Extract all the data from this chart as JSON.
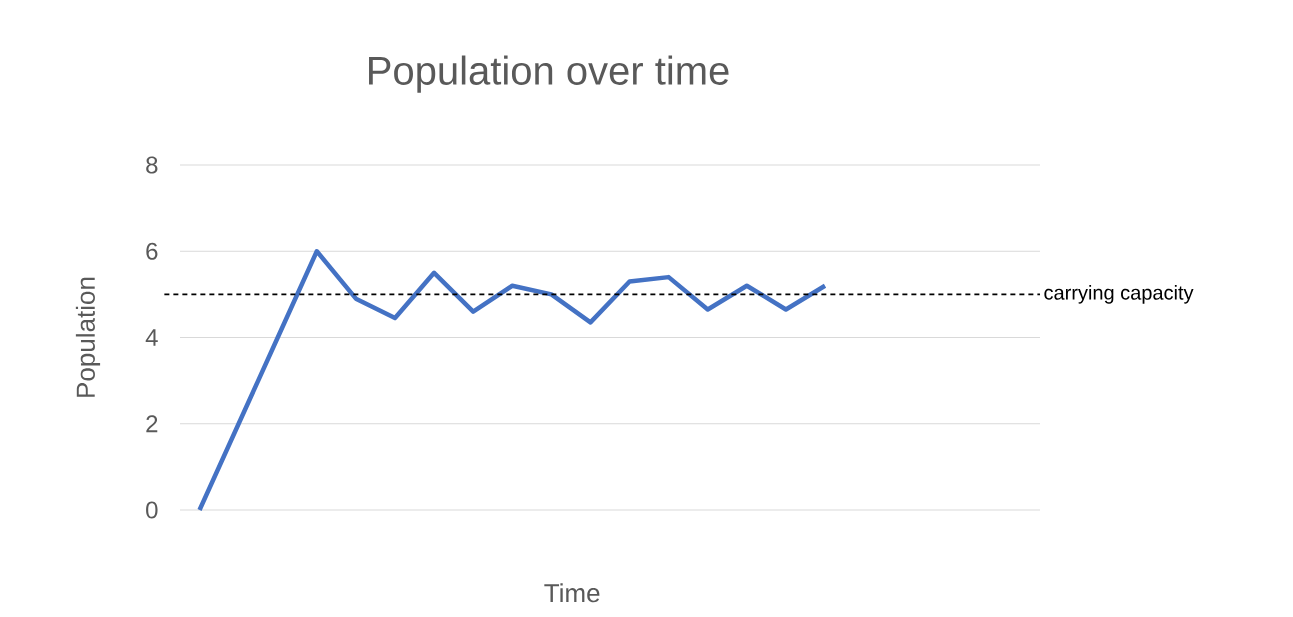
{
  "chart_data": {
    "type": "line",
    "title": "Population over time",
    "xlabel": "Time",
    "ylabel": "Population",
    "categories": [
      null,
      null,
      null,
      null,
      null,
      null,
      null,
      null,
      null,
      null,
      null,
      null,
      null,
      null,
      null,
      null,
      null,
      null,
      null,
      null,
      null,
      null
    ],
    "series": [
      {
        "color": "#4472c4",
        "values": [
          0,
          2,
          4,
          6,
          4.9,
          4.45,
          5.5,
          4.6,
          5.2,
          5.0,
          4.35,
          5.3,
          5.4,
          4.65,
          5.2,
          4.65,
          5.2,
          null,
          null,
          null,
          null,
          null
        ]
      }
    ],
    "ylim": [
      0,
      8
    ],
    "yticks": [
      0,
      2,
      4,
      6,
      8
    ],
    "grid": "y",
    "ref_lines": [
      {
        "axis": "y",
        "value": 5,
        "label": "carrying capacity",
        "color": "#000000",
        "line_style": "dashed"
      }
    ]
  }
}
